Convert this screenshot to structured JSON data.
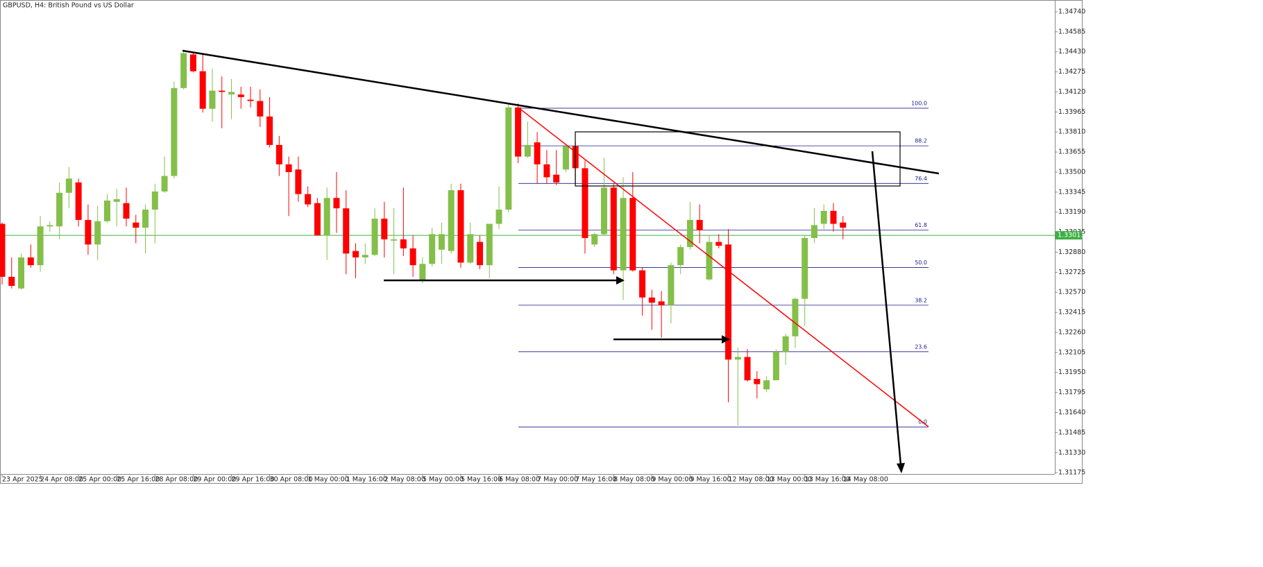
{
  "chart_data": {
    "type": "candlestick",
    "title": "GBPUSD, H4:  British Pound vs US Dollar",
    "categories": [
      "23 Apr 2025",
      null,
      null,
      null,
      "24 Apr 08:00",
      null,
      null,
      null,
      "25 Apr 00:00",
      null,
      null,
      null,
      "25 Apr 16:00",
      null,
      null,
      null,
      "28 Apr 08:00",
      null,
      null,
      null,
      "29 Apr 00:00",
      null,
      null,
      null,
      "29 Apr 16:00",
      null,
      null,
      null,
      "30 Apr 08:00",
      null,
      null,
      null,
      "1 May 00:00",
      null,
      null,
      null,
      "1 May 16:00",
      null,
      null,
      null,
      "2 May 08:00",
      null,
      null,
      null,
      "5 May 00:00",
      null,
      null,
      null,
      "5 May 16:00",
      null,
      null,
      null,
      "6 May 08:00",
      null,
      null,
      null,
      "7 May 00:00",
      null,
      null,
      null,
      "7 May 16:00",
      null,
      null,
      null,
      "8 May 08:00",
      null,
      null,
      null,
      "9 May 00:00",
      null,
      null,
      null,
      "9 May 16:00",
      null,
      null,
      null,
      "12 May 08:00",
      null,
      null,
      null,
      "13 May 00:00",
      null,
      null,
      null,
      "13 May 16:00",
      null,
      null,
      null,
      "14 May 08:00"
    ],
    "open": [
      1.331,
      1.3269,
      1.326,
      1.3284,
      1.3278,
      1.3308,
      1.3308,
      1.3334,
      1.3342,
      1.3313,
      1.3294,
      1.3312,
      1.3327,
      1.3326,
      1.3311,
      1.3307,
      1.3321,
      1.3335,
      1.3347,
      1.3415,
      1.3441,
      1.3428,
      1.3399,
      1.3413,
      1.341,
      1.341,
      1.3406,
      1.3405,
      1.3393,
      1.3371,
      1.3356,
      1.3352,
      1.3333,
      1.3326,
      1.3301,
      1.333,
      1.3322,
      1.3289,
      1.3284,
      1.3286,
      1.3314,
      1.3297,
      1.3298,
      1.3291,
      1.3266,
      1.3279,
      1.329,
      1.3289,
      1.3336,
      1.328,
      1.3296,
      1.3278,
      1.331,
      1.3321,
      1.34,
      1.3362,
      1.3373,
      1.3356,
      1.3348,
      1.3352,
      1.337,
      1.3353,
      1.3294,
      1.3302,
      1.3338,
      1.3274,
      1.333,
      1.3274,
      1.3253,
      1.325,
      1.3247,
      1.3278,
      1.3292,
      1.3313,
      1.3267,
      1.3296,
      1.3294,
      1.3205,
      1.3207,
      1.319,
      1.3182,
      1.3189,
      1.3211,
      1.3223,
      1.3252,
      1.3299,
      1.331,
      1.332,
      1.3311
    ],
    "high": [
      1.3311,
      1.3284,
      1.3287,
      1.3294,
      1.3316,
      1.3312,
      1.3342,
      1.3354,
      1.3345,
      1.3325,
      1.3324,
      1.3333,
      1.3337,
      1.3338,
      1.3317,
      1.3325,
      1.3341,
      1.3362,
      1.342,
      1.3443,
      1.3443,
      1.3442,
      1.343,
      1.3424,
      1.3422,
      1.3416,
      1.3416,
      1.3414,
      1.3408,
      1.3378,
      1.3362,
      1.3362,
      1.3339,
      1.333,
      1.3338,
      1.335,
      1.3336,
      1.3295,
      1.3295,
      1.3322,
      1.3327,
      1.3322,
      1.3338,
      1.3301,
      1.3284,
      1.3307,
      1.3311,
      1.3341,
      1.3341,
      1.3311,
      1.3301,
      1.331,
      1.3339,
      1.3403,
      1.3403,
      1.3389,
      1.3381,
      1.3367,
      1.3367,
      1.3372,
      1.3373,
      1.3359,
      1.3303,
      1.3361,
      1.3341,
      1.3346,
      1.335,
      1.3276,
      1.3259,
      1.3258,
      1.328,
      1.3294,
      1.3327,
      1.3325,
      1.3301,
      1.3302,
      1.3306,
      1.3214,
      1.3213,
      1.3196,
      1.3192,
      1.3213,
      1.3225,
      1.3253,
      1.3301,
      1.3322,
      1.3325,
      1.3326,
      1.3316
    ],
    "low": [
      1.3263,
      1.326,
      1.3259,
      1.3276,
      1.3273,
      1.3304,
      1.3298,
      1.3322,
      1.3308,
      1.3286,
      1.3282,
      1.3311,
      1.3308,
      1.3308,
      1.3295,
      1.3287,
      1.3295,
      1.3334,
      1.3345,
      1.3414,
      1.3427,
      1.3396,
      1.3389,
      1.3384,
      1.3391,
      1.3399,
      1.34,
      1.3385,
      1.3369,
      1.3347,
      1.3316,
      1.3327,
      1.3323,
      1.3301,
      1.3282,
      1.3303,
      1.3271,
      1.3268,
      1.3279,
      1.3285,
      1.3284,
      1.3271,
      1.3285,
      1.3269,
      1.3264,
      1.3277,
      1.3279,
      1.3287,
      1.3276,
      1.3279,
      1.3275,
      1.3268,
      1.3306,
      1.3319,
      1.3357,
      1.3361,
      1.3341,
      1.3341,
      1.334,
      1.335,
      1.3341,
      1.3287,
      1.3292,
      1.3301,
      1.3271,
      1.3251,
      1.3273,
      1.3239,
      1.3228,
      1.3222,
      1.3233,
      1.3271,
      1.329,
      1.3295,
      1.3266,
      1.3291,
      1.3172,
      1.3154,
      1.3188,
      1.3175,
      1.318,
      1.3189,
      1.3201,
      1.3214,
      1.3231,
      1.3295,
      1.3306,
      1.3304,
      1.3298
    ],
    "close": [
      1.3269,
      1.3262,
      1.3284,
      1.3278,
      1.3308,
      1.3309,
      1.3334,
      1.3345,
      1.3313,
      1.3294,
      1.3312,
      1.3328,
      1.3329,
      1.3314,
      1.3307,
      1.3321,
      1.3335,
      1.3347,
      1.3415,
      1.3442,
      1.3428,
      1.3399,
      1.3413,
      1.3412,
      1.3412,
      1.3408,
      1.3405,
      1.3393,
      1.3371,
      1.3356,
      1.335,
      1.3333,
      1.3325,
      1.3301,
      1.333,
      1.3322,
      1.3287,
      1.3284,
      1.3286,
      1.3314,
      1.3298,
      1.3298,
      1.3291,
      1.3278,
      1.3279,
      1.3302,
      1.3302,
      1.3336,
      1.328,
      1.3302,
      1.3278,
      1.331,
      1.3321,
      1.34,
      1.3362,
      1.3371,
      1.3356,
      1.3346,
      1.3342,
      1.337,
      1.3353,
      1.3299,
      1.3302,
      1.3338,
      1.3274,
      1.333,
      1.3274,
      1.3253,
      1.3249,
      1.3247,
      1.3278,
      1.3292,
      1.3313,
      1.3305,
      1.3296,
      1.3293,
      1.3205,
      1.3207,
      1.3189,
      1.3186,
      1.3189,
      1.3211,
      1.3223,
      1.3252,
      1.3299,
      1.3309,
      1.332,
      1.331,
      1.3307
    ],
    "up_color": "#84bf4a",
    "down_color": "#ff0000",
    "ylim": [
      1.31165,
      1.34831
    ],
    "yticks": [
      {
        "value": 1.3474,
        "label": "1.34740"
      },
      1.34585,
      {
        "value": 1.3443,
        "label": "1.34430"
      },
      1.34275,
      {
        "value": 1.3412,
        "label": "1.34120"
      },
      1.33965,
      {
        "value": 1.3381,
        "label": "1.33810"
      },
      1.33655,
      {
        "value": 1.335,
        "label": "1.33500"
      },
      1.33345,
      {
        "value": 1.3319,
        "label": "1.33190"
      },
      1.33035,
      {
        "value": 1.3288,
        "label": "1.32880"
      },
      1.32725,
      {
        "value": 1.3257,
        "label": "1.32570"
      },
      1.32415,
      {
        "value": 1.3226,
        "label": "1.32260"
      },
      1.32105,
      {
        "value": 1.3195,
        "label": "1.31950"
      },
      1.31795,
      {
        "value": 1.3164,
        "label": "1.31640"
      },
      1.31485,
      {
        "value": 1.3133,
        "label": "1.31330"
      },
      1.31175
    ],
    "last_price": 1.33011,
    "last_price_color": "#3cb043",
    "fibonacci": {
      "high": 1.33994,
      "low": 1.31529,
      "color": "#1c1c8c",
      "levels": [
        {
          "value": 100,
          "label": "100.0"
        },
        88.2,
        76.4,
        61.8,
        {
          "value": 50,
          "label": "50.0"
        },
        38.2,
        23.6,
        {
          "value": 0,
          "label": "0.0"
        }
      ]
    }
  }
}
